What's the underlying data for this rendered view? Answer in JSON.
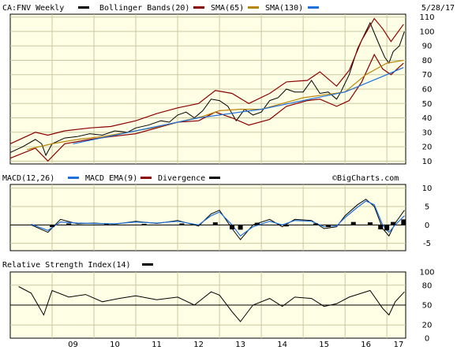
{
  "chart_data": [
    {
      "type": "line",
      "panel": "price",
      "legend": {
        "symbol_label": "CA:FNV Weekly",
        "bollinger_label": "Bollinger Bands(20)",
        "sma65_label": "SMA(65)",
        "sma130_label": "SMA(130)"
      },
      "date_label": "5/28/17",
      "watermark": "©BigCharts.com",
      "x_ticks": [
        "09",
        "10",
        "11",
        "12",
        "13",
        "14",
        "15",
        "16",
        "17"
      ],
      "y_ticks": [
        10,
        20,
        30,
        40,
        50,
        60,
        70,
        80,
        90,
        100,
        110
      ],
      "ylim": [
        8,
        112
      ],
      "x_range": [
        2008.0,
        2017.45
      ],
      "series": [
        {
          "name": "CA:FNV Weekly",
          "color": "#000000",
          "points": [
            [
              2008.0,
              16
            ],
            [
              2008.3,
              20
            ],
            [
              2008.6,
              25
            ],
            [
              2008.75,
              22
            ],
            [
              2008.85,
              14
            ],
            [
              2009.0,
              22
            ],
            [
              2009.3,
              26
            ],
            [
              2009.6,
              27
            ],
            [
              2009.9,
              29
            ],
            [
              2010.2,
              28
            ],
            [
              2010.5,
              31
            ],
            [
              2010.8,
              30
            ],
            [
              2011.0,
              33
            ],
            [
              2011.3,
              35
            ],
            [
              2011.6,
              38
            ],
            [
              2011.8,
              37
            ],
            [
              2012.0,
              42
            ],
            [
              2012.2,
              44
            ],
            [
              2012.4,
              40
            ],
            [
              2012.6,
              45
            ],
            [
              2012.8,
              53
            ],
            [
              2013.0,
              52
            ],
            [
              2013.2,
              48
            ],
            [
              2013.4,
              38
            ],
            [
              2013.6,
              46
            ],
            [
              2013.8,
              42
            ],
            [
              2014.0,
              44
            ],
            [
              2014.2,
              52
            ],
            [
              2014.4,
              54
            ],
            [
              2014.6,
              60
            ],
            [
              2014.8,
              58
            ],
            [
              2015.0,
              58
            ],
            [
              2015.2,
              66
            ],
            [
              2015.4,
              57
            ],
            [
              2015.6,
              58
            ],
            [
              2015.8,
              53
            ],
            [
              2015.9,
              58
            ],
            [
              2016.1,
              70
            ],
            [
              2016.3,
              88
            ],
            [
              2016.5,
              100
            ],
            [
              2016.6,
              106
            ],
            [
              2016.8,
              92
            ],
            [
              2016.95,
              82
            ],
            [
              2017.05,
              78
            ],
            [
              2017.15,
              86
            ],
            [
              2017.3,
              90
            ],
            [
              2017.42,
              100
            ]
          ]
        },
        {
          "name": "Bollinger Bands(20)",
          "color": "#8b0000",
          "role": "upper",
          "points": [
            [
              2008.0,
              22
            ],
            [
              2008.6,
              30
            ],
            [
              2008.9,
              28
            ],
            [
              2009.3,
              31
            ],
            [
              2009.9,
              33
            ],
            [
              2010.4,
              34
            ],
            [
              2011.0,
              38
            ],
            [
              2011.5,
              43
            ],
            [
              2012.0,
              47
            ],
            [
              2012.5,
              50
            ],
            [
              2012.9,
              59
            ],
            [
              2013.3,
              57
            ],
            [
              2013.7,
              50
            ],
            [
              2014.2,
              57
            ],
            [
              2014.6,
              65
            ],
            [
              2015.1,
              66
            ],
            [
              2015.4,
              72
            ],
            [
              2015.8,
              62
            ],
            [
              2016.1,
              73
            ],
            [
              2016.4,
              94
            ],
            [
              2016.7,
              109
            ],
            [
              2016.9,
              102
            ],
            [
              2017.1,
              93
            ],
            [
              2017.4,
              105
            ]
          ]
        },
        {
          "name": "Bollinger Bands(20)",
          "color": "#8b0000",
          "role": "lower",
          "points": [
            [
              2008.0,
              12
            ],
            [
              2008.6,
              19
            ],
            [
              2008.9,
              10
            ],
            [
              2009.3,
              22
            ],
            [
              2009.9,
              25
            ],
            [
              2010.4,
              27
            ],
            [
              2011.0,
              29
            ],
            [
              2011.5,
              33
            ],
            [
              2012.0,
              37
            ],
            [
              2012.5,
              38
            ],
            [
              2012.9,
              44
            ],
            [
              2013.3,
              40
            ],
            [
              2013.7,
              35
            ],
            [
              2014.2,
              39
            ],
            [
              2014.6,
              48
            ],
            [
              2015.1,
              52
            ],
            [
              2015.4,
              53
            ],
            [
              2015.8,
              48
            ],
            [
              2016.1,
              52
            ],
            [
              2016.4,
              65
            ],
            [
              2016.7,
              84
            ],
            [
              2016.9,
              74
            ],
            [
              2017.1,
              70
            ],
            [
              2017.4,
              78
            ]
          ]
        },
        {
          "name": "SMA(65)",
          "color": "#b8860b",
          "points": [
            [
              2008.4,
              18
            ],
            [
              2009.0,
              22
            ],
            [
              2009.6,
              25
            ],
            [
              2010.2,
              27
            ],
            [
              2010.8,
              30
            ],
            [
              2011.4,
              33
            ],
            [
              2012.0,
              37
            ],
            [
              2012.6,
              41
            ],
            [
              2013.0,
              45
            ],
            [
              2013.5,
              46
            ],
            [
              2014.0,
              46
            ],
            [
              2014.5,
              50
            ],
            [
              2015.0,
              54
            ],
            [
              2015.5,
              56
            ],
            [
              2016.0,
              58
            ],
            [
              2016.5,
              70
            ],
            [
              2017.0,
              78
            ],
            [
              2017.4,
              80
            ]
          ]
        },
        {
          "name": "SMA(130)",
          "color": "#1e6fd9",
          "points": [
            [
              2009.5,
              22
            ],
            [
              2010.0,
              25
            ],
            [
              2010.5,
              28
            ],
            [
              2011.0,
              31
            ],
            [
              2011.5,
              34
            ],
            [
              2012.0,
              37
            ],
            [
              2012.5,
              40
            ],
            [
              2013.0,
              42
            ],
            [
              2013.5,
              44
            ],
            [
              2014.0,
              46
            ],
            [
              2014.5,
              49
            ],
            [
              2015.0,
              52
            ],
            [
              2015.5,
              55
            ],
            [
              2016.0,
              58
            ],
            [
              2016.5,
              64
            ],
            [
              2017.0,
              70
            ],
            [
              2017.4,
              75
            ]
          ]
        }
      ]
    },
    {
      "type": "line",
      "panel": "macd",
      "legend": {
        "macd_label": "MACD(12,26)",
        "ema_label": "MACD EMA(9)",
        "divergence_label": "Divergence"
      },
      "y_ticks": [
        10,
        5,
        0,
        -5
      ],
      "ylim": [
        -7,
        11
      ],
      "series": [
        {
          "name": "MACD(12,26)",
          "color": "#000000",
          "points": [
            [
              2008.5,
              0
            ],
            [
              2008.9,
              -2
            ],
            [
              2009.2,
              1.5
            ],
            [
              2009.6,
              0.3
            ],
            [
              2010.0,
              0.5
            ],
            [
              2010.5,
              0.2
            ],
            [
              2011.0,
              1
            ],
            [
              2011.5,
              0.4
            ],
            [
              2012.0,
              1.2
            ],
            [
              2012.5,
              -0.3
            ],
            [
              2012.8,
              3
            ],
            [
              2013.0,
              4
            ],
            [
              2013.3,
              -1
            ],
            [
              2013.5,
              -4
            ],
            [
              2013.8,
              0
            ],
            [
              2014.2,
              1.5
            ],
            [
              2014.5,
              -0.5
            ],
            [
              2014.8,
              1.5
            ],
            [
              2015.2,
              1.2
            ],
            [
              2015.5,
              -1
            ],
            [
              2015.8,
              -0.5
            ],
            [
              2016.0,
              2.5
            ],
            [
              2016.3,
              5.5
            ],
            [
              2016.5,
              7
            ],
            [
              2016.7,
              5
            ],
            [
              2016.9,
              -1
            ],
            [
              2017.05,
              -3
            ],
            [
              2017.2,
              0.5
            ],
            [
              2017.42,
              4
            ]
          ]
        },
        {
          "name": "MACD EMA(9)",
          "color": "#1e6fd9",
          "points": [
            [
              2008.5,
              0.2
            ],
            [
              2008.9,
              -1.5
            ],
            [
              2009.2,
              0.8
            ],
            [
              2009.6,
              0.5
            ],
            [
              2010.0,
              0.4
            ],
            [
              2010.5,
              0.3
            ],
            [
              2011.0,
              0.8
            ],
            [
              2011.5,
              0.5
            ],
            [
              2012.0,
              1
            ],
            [
              2012.5,
              0
            ],
            [
              2012.8,
              2.5
            ],
            [
              2013.0,
              3.5
            ],
            [
              2013.3,
              0
            ],
            [
              2013.5,
              -3
            ],
            [
              2013.8,
              -0.5
            ],
            [
              2014.2,
              1
            ],
            [
              2014.5,
              0
            ],
            [
              2014.8,
              1.2
            ],
            [
              2015.2,
              1
            ],
            [
              2015.5,
              -0.5
            ],
            [
              2015.8,
              -0.3
            ],
            [
              2016.0,
              2
            ],
            [
              2016.3,
              4.8
            ],
            [
              2016.5,
              6.5
            ],
            [
              2016.7,
              5.5
            ],
            [
              2016.9,
              0
            ],
            [
              2017.05,
              -2
            ],
            [
              2017.2,
              0
            ],
            [
              2017.42,
              2.5
            ]
          ]
        },
        {
          "name": "Divergence",
          "color": "#000000",
          "role": "histogram",
          "points": [
            [
              2009.0,
              -0.6
            ],
            [
              2009.4,
              0.4
            ],
            [
              2010.3,
              0.2
            ],
            [
              2011.2,
              0.3
            ],
            [
              2012.1,
              0.4
            ],
            [
              2012.9,
              0.7
            ],
            [
              2013.3,
              -1.2
            ],
            [
              2013.5,
              -1.3
            ],
            [
              2013.9,
              0.6
            ],
            [
              2014.6,
              -0.4
            ],
            [
              2015.3,
              0.4
            ],
            [
              2015.6,
              -0.6
            ],
            [
              2016.2,
              0.8
            ],
            [
              2016.6,
              0.7
            ],
            [
              2016.85,
              -1.2
            ],
            [
              2017.0,
              -1.5
            ],
            [
              2017.15,
              0.8
            ],
            [
              2017.4,
              1.5
            ]
          ]
        }
      ]
    },
    {
      "type": "line",
      "panel": "rsi",
      "legend": {
        "rsi_label": "Relative Strength Index(14)"
      },
      "y_ticks": [
        100,
        80,
        50,
        20,
        0
      ],
      "ylim": [
        0,
        100
      ],
      "reference_line": 50,
      "series": [
        {
          "name": "Relative Strength Index(14)",
          "color": "#000000",
          "points": [
            [
              2008.2,
              78
            ],
            [
              2008.5,
              68
            ],
            [
              2008.8,
              35
            ],
            [
              2009.0,
              72
            ],
            [
              2009.4,
              62
            ],
            [
              2009.8,
              66
            ],
            [
              2010.2,
              55
            ],
            [
              2010.6,
              60
            ],
            [
              2011.0,
              64
            ],
            [
              2011.5,
              58
            ],
            [
              2012.0,
              62
            ],
            [
              2012.4,
              50
            ],
            [
              2012.8,
              70
            ],
            [
              2013.0,
              65
            ],
            [
              2013.3,
              40
            ],
            [
              2013.5,
              25
            ],
            [
              2013.8,
              50
            ],
            [
              2014.2,
              60
            ],
            [
              2014.5,
              48
            ],
            [
              2014.8,
              62
            ],
            [
              2015.2,
              60
            ],
            [
              2015.5,
              48
            ],
            [
              2015.8,
              52
            ],
            [
              2016.1,
              62
            ],
            [
              2016.4,
              68
            ],
            [
              2016.6,
              72
            ],
            [
              2016.9,
              45
            ],
            [
              2017.05,
              35
            ],
            [
              2017.2,
              55
            ],
            [
              2017.42,
              70
            ]
          ]
        }
      ]
    }
  ]
}
